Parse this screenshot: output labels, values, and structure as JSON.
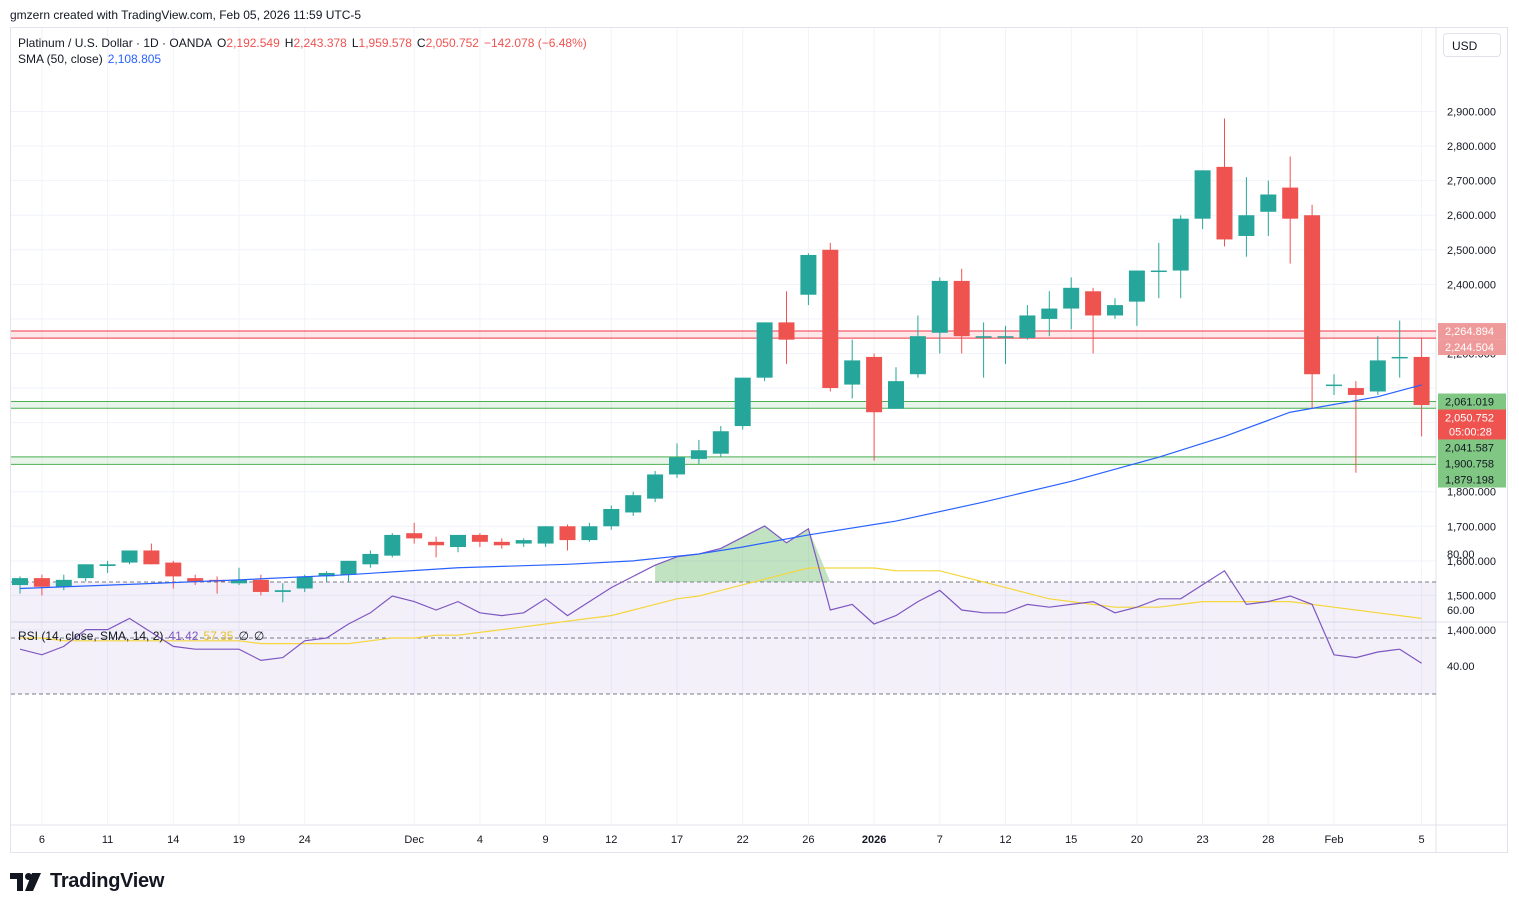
{
  "header": {
    "text": "gmzern created with TradingView.com, Feb 05, 2026 11:59 UTC-5"
  },
  "legend_main": {
    "symbol": "Platinum / U.S. Dollar · 1D · OANDA",
    "o_label": "O",
    "o": "2,192.549",
    "h_label": "H",
    "h": "2,243.378",
    "l_label": "L",
    "l": "1,959.578",
    "c_label": "C",
    "c": "2,050.752",
    "change": "−142.078 (−6.48%)"
  },
  "legend_sma": {
    "label": "SMA (50, close)",
    "value": "2,108.805"
  },
  "legend_rsi": {
    "label": "RSI (14, close, SMA, 14, 2)",
    "rsi": "41.42",
    "sma": "57.35",
    "b1": "∅",
    "b2": "∅"
  },
  "currency_button": "USD",
  "logo": {
    "text": "TradingView",
    "icon": "tradingview-logo-icon"
  },
  "colors": {
    "up": "#26a69a",
    "down": "#ef5350",
    "sma": "#2962ff",
    "rsi": "#7e57c2",
    "rsi_ma": "#f5d63d",
    "zone_red": "#f23645",
    "zone_green": "#4caf50"
  },
  "chart_data": {
    "type": "candlestick",
    "price_axis": {
      "ticks": [
        1400,
        1500,
        1600,
        1700,
        1800,
        1900,
        2000,
        2100,
        2200,
        2300,
        2400,
        2500,
        2600,
        2700,
        2800,
        2900
      ],
      "labels": [
        "1,400.000",
        "1,500.000",
        "1,600.000",
        "1,700.000",
        "1,800.000",
        "",
        "",
        "",
        "2,200.000",
        "",
        "2,400.000",
        "2,500.000",
        "2,600.000",
        "2,700.000",
        "2,800.000",
        "2,900.000"
      ]
    },
    "date_labels": [
      {
        "label": "6",
        "i": 1
      },
      {
        "label": "11",
        "i": 4
      },
      {
        "label": "14",
        "i": 7
      },
      {
        "label": "19",
        "i": 10
      },
      {
        "label": "24",
        "i": 13
      },
      {
        "label": "Dec",
        "i": 18
      },
      {
        "label": "4",
        "i": 21
      },
      {
        "label": "9",
        "i": 24
      },
      {
        "label": "12",
        "i": 27
      },
      {
        "label": "17",
        "i": 30
      },
      {
        "label": "22",
        "i": 33
      },
      {
        "label": "26",
        "i": 36
      },
      {
        "label": "2026",
        "i": 39
      },
      {
        "label": "7",
        "i": 42
      },
      {
        "label": "12",
        "i": 45
      },
      {
        "label": "15",
        "i": 48
      },
      {
        "label": "20",
        "i": 51
      },
      {
        "label": "23",
        "i": 54
      },
      {
        "label": "28",
        "i": 57
      },
      {
        "label": "Feb",
        "i": 60
      },
      {
        "label": "5",
        "i": 64
      }
    ],
    "candles": [
      [
        1530,
        1555,
        1505,
        1550
      ],
      [
        1550,
        1560,
        1500,
        1525
      ],
      [
        1525,
        1560,
        1515,
        1545
      ],
      [
        1550,
        1590,
        1540,
        1590
      ],
      [
        1585,
        1600,
        1565,
        1590
      ],
      [
        1595,
        1630,
        1590,
        1630
      ],
      [
        1630,
        1650,
        1590,
        1590
      ],
      [
        1595,
        1600,
        1520,
        1555
      ],
      [
        1550,
        1560,
        1530,
        1540
      ],
      [
        1545,
        1555,
        1505,
        1540
      ],
      [
        1535,
        1580,
        1530,
        1545
      ],
      [
        1545,
        1560,
        1500,
        1510
      ],
      [
        1510,
        1535,
        1480,
        1515
      ],
      [
        1520,
        1560,
        1510,
        1555
      ],
      [
        1555,
        1570,
        1540,
        1565
      ],
      [
        1560,
        1600,
        1540,
        1600
      ],
      [
        1590,
        1630,
        1580,
        1620
      ],
      [
        1615,
        1680,
        1610,
        1675
      ],
      [
        1680,
        1710,
        1650,
        1665
      ],
      [
        1655,
        1670,
        1610,
        1645
      ],
      [
        1640,
        1675,
        1625,
        1675
      ],
      [
        1675,
        1680,
        1640,
        1655
      ],
      [
        1655,
        1665,
        1635,
        1645
      ],
      [
        1650,
        1665,
        1640,
        1660
      ],
      [
        1650,
        1700,
        1640,
        1700
      ],
      [
        1700,
        1705,
        1630,
        1660
      ],
      [
        1660,
        1710,
        1655,
        1700
      ],
      [
        1700,
        1760,
        1690,
        1750
      ],
      [
        1740,
        1800,
        1730,
        1790
      ],
      [
        1780,
        1860,
        1770,
        1850
      ],
      [
        1850,
        1940,
        1840,
        1900
      ],
      [
        1895,
        1950,
        1880,
        1920
      ],
      [
        1910,
        1990,
        1900,
        1975
      ],
      [
        1990,
        2130,
        1980,
        2130
      ],
      [
        2130,
        2290,
        2120,
        2290
      ],
      [
        2290,
        2380,
        2170,
        2240
      ],
      [
        2370,
        2490,
        2340,
        2485
      ],
      [
        2500,
        2520,
        2090,
        2100
      ],
      [
        2110,
        2240,
        2070,
        2180
      ],
      [
        2190,
        2200,
        1890,
        2030
      ],
      [
        2040,
        2160,
        2050,
        2120
      ],
      [
        2140,
        2310,
        2130,
        2250
      ],
      [
        2260,
        2420,
        2200,
        2410
      ],
      [
        2410,
        2445,
        2200,
        2250
      ],
      [
        2250,
        2290,
        2130,
        2250
      ],
      [
        2250,
        2280,
        2170,
        2250
      ],
      [
        2245,
        2340,
        2240,
        2310
      ],
      [
        2300,
        2380,
        2250,
        2330
      ],
      [
        2330,
        2420,
        2270,
        2390
      ],
      [
        2380,
        2390,
        2200,
        2310
      ],
      [
        2310,
        2360,
        2300,
        2340
      ],
      [
        2350,
        2440,
        2280,
        2440
      ],
      [
        2440,
        2520,
        2360,
        2440
      ],
      [
        2440,
        2600,
        2360,
        2590
      ],
      [
        2590,
        2730,
        2560,
        2730
      ],
      [
        2740,
        2880,
        2510,
        2530
      ],
      [
        2540,
        2710,
        2480,
        2600
      ],
      [
        2610,
        2700,
        2540,
        2660
      ],
      [
        2680,
        2770,
        2460,
        2590
      ],
      [
        2600,
        2630,
        2040,
        2140
      ],
      [
        2110,
        2140,
        2080,
        2110
      ],
      [
        2100,
        2120,
        1855,
        2080
      ],
      [
        2090,
        2250,
        2080,
        2180
      ],
      [
        2190,
        2295,
        2130,
        2190
      ],
      [
        2190,
        2243,
        1960,
        2051
      ]
    ],
    "sma50": {
      "label": "SMA (50, close)",
      "points": [
        [
          0,
          1520
        ],
        [
          5,
          1532
        ],
        [
          10,
          1545
        ],
        [
          15,
          1560
        ],
        [
          20,
          1580
        ],
        [
          25,
          1590
        ],
        [
          28,
          1600
        ],
        [
          31,
          1620
        ],
        [
          33,
          1640
        ],
        [
          36,
          1675
        ],
        [
          40,
          1715
        ],
        [
          44,
          1770
        ],
        [
          48,
          1830
        ],
        [
          52,
          1900
        ],
        [
          55,
          1960
        ],
        [
          58,
          2030
        ],
        [
          62,
          2075
        ],
        [
          64,
          2109
        ]
      ]
    },
    "horizontal_zones": [
      {
        "color": "red",
        "top": 2264.894,
        "bottom": 2244.504
      },
      {
        "color": "green",
        "top": 2061.019,
        "bottom": 2041.587
      },
      {
        "color": "green",
        "top": 1900.758,
        "bottom": 1879.198
      }
    ],
    "price_tags": [
      {
        "value": 2264.894,
        "label": "2,264.894",
        "color": "#ef9a9a"
      },
      {
        "value": 2244.504,
        "label": "2,244.504",
        "color": "#ef9a9a"
      },
      {
        "value": 2061.019,
        "label": "2,061.019",
        "color": "#81c784"
      },
      {
        "value": 2050.752,
        "label": "2,050.752",
        "color": "#ef5350",
        "sub": "05:00:28"
      },
      {
        "value": 2041.587,
        "label": "2,041.587",
        "color": "#81c784"
      },
      {
        "value": 1900.758,
        "label": "1,900.758",
        "color": "#81c784"
      },
      {
        "value": 1879.198,
        "label": "1,879.198",
        "color": "#81c784"
      }
    ],
    "rsi": {
      "axis_ticks": [
        40,
        60,
        80
      ],
      "axis_labels": [
        "40.00",
        "60.00",
        "80.00"
      ],
      "band": [
        30,
        70
      ],
      "mid": 50,
      "values": [
        46,
        44,
        47,
        53,
        53,
        57,
        52,
        47,
        46,
        46,
        46,
        42,
        43,
        49,
        50,
        55,
        59,
        65,
        63,
        60,
        63,
        59,
        58,
        59,
        64,
        58,
        63,
        68,
        72,
        76,
        79,
        80,
        82,
        86,
        90,
        84,
        89,
        60,
        62,
        55,
        58,
        63,
        67,
        60,
        59,
        59,
        62,
        61,
        62,
        63,
        59,
        61,
        64,
        64,
        69,
        74,
        62,
        63,
        65,
        62,
        44,
        43,
        45,
        46,
        41
      ],
      "ma": [
        50,
        50,
        49,
        49,
        49,
        49,
        49,
        49,
        49,
        49,
        49,
        48,
        48,
        48,
        48,
        48,
        49,
        50,
        50,
        51,
        51,
        52,
        53,
        54,
        55,
        56,
        57,
        58,
        60,
        62,
        64,
        65,
        67,
        69,
        71,
        73,
        75,
        75,
        75,
        75,
        74,
        74,
        74,
        72,
        70,
        68,
        66,
        64,
        63,
        62,
        61,
        61,
        61,
        62,
        63,
        63,
        63,
        63,
        63,
        62,
        61,
        60,
        59,
        58,
        57
      ]
    }
  }
}
